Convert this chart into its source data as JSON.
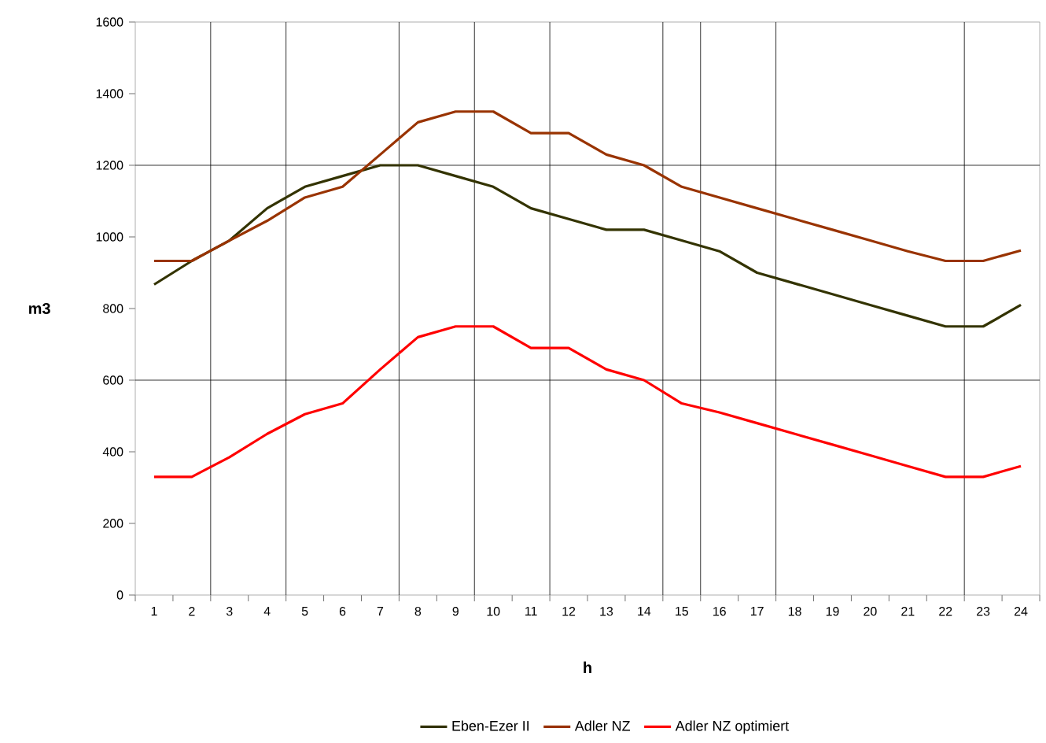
{
  "chart_data": {
    "type": "line",
    "xlabel": "h",
    "ylabel": "m3",
    "x": [
      1,
      2,
      3,
      4,
      5,
      6,
      7,
      8,
      9,
      10,
      11,
      12,
      13,
      14,
      15,
      16,
      17,
      18,
      19,
      20,
      21,
      22,
      23,
      24
    ],
    "xlim": [
      0.5,
      24.5
    ],
    "xticks": [
      1,
      2,
      3,
      4,
      5,
      6,
      7,
      8,
      9,
      10,
      11,
      12,
      13,
      14,
      15,
      16,
      17,
      18,
      19,
      20,
      21,
      22,
      23,
      24
    ],
    "ylim": [
      0,
      1600
    ],
    "yticks": [
      0,
      200,
      400,
      600,
      800,
      1000,
      1200,
      1400,
      1600
    ],
    "grid": false,
    "legend": "bottom",
    "marker": "none",
    "line_style": "solid",
    "ref_lines": [
      {
        "axis": "y",
        "value": 1200,
        "color": "#000000"
      },
      {
        "axis": "y",
        "value": 600,
        "color": "#000000"
      },
      {
        "axis": "x",
        "value": 2.5,
        "color": "#000000"
      },
      {
        "axis": "x",
        "value": 4.5,
        "color": "#000000"
      },
      {
        "axis": "x",
        "value": 7.5,
        "color": "#000000"
      },
      {
        "axis": "x",
        "value": 9.5,
        "color": "#000000"
      },
      {
        "axis": "x",
        "value": 11.5,
        "color": "#000000"
      },
      {
        "axis": "x",
        "value": 14.5,
        "color": "#000000"
      },
      {
        "axis": "x",
        "value": 15.5,
        "color": "#000000"
      },
      {
        "axis": "x",
        "value": 17.5,
        "color": "#000000"
      },
      {
        "axis": "x",
        "value": 22.5,
        "color": "#000000"
      }
    ],
    "series": [
      {
        "name": "Eben-Ezer II",
        "color": "#333300",
        "values": [
          867,
          933,
          990,
          1080,
          1140,
          1170,
          1200,
          1200,
          1170,
          1140,
          1080,
          1050,
          1020,
          1020,
          990,
          960,
          900,
          870,
          840,
          810,
          780,
          750,
          750,
          810
        ]
      },
      {
        "name": "Adler NZ",
        "color": "#993300",
        "values": [
          933,
          933,
          990,
          1045,
          1110,
          1140,
          1230,
          1320,
          1350,
          1350,
          1290,
          1290,
          1230,
          1200,
          1140,
          1110,
          1080,
          1050,
          1020,
          990,
          960,
          933,
          933,
          962
        ]
      },
      {
        "name": "Adler NZ optimiert",
        "color": "#ff0000",
        "values": [
          330,
          330,
          385,
          450,
          505,
          535,
          630,
          720,
          750,
          750,
          690,
          690,
          630,
          600,
          535,
          510,
          480,
          450,
          420,
          390,
          360,
          330,
          330,
          360
        ]
      }
    ]
  }
}
